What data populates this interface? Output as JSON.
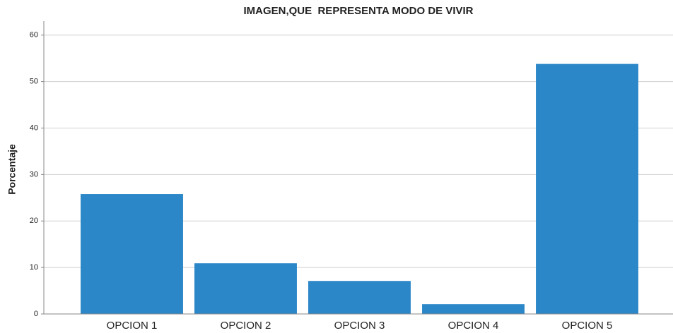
{
  "chart_data": {
    "type": "bar",
    "title": "IMAGEN,QUE  REPRESENTA MODO DE VIVIR",
    "y_label": "Porcentaje",
    "categories": [
      "OPCION 1",
      "OPCION 2",
      "OPCION 3",
      "OPCION 4",
      "OPCION 5"
    ],
    "values": [
      25.8,
      10.9,
      7.1,
      2.1,
      53.8
    ],
    "color": "#2b87c8",
    "ylim": [
      0,
      63
    ],
    "yticks": [
      0,
      10,
      20,
      30,
      40,
      50,
      60
    ],
    "grid": true
  }
}
